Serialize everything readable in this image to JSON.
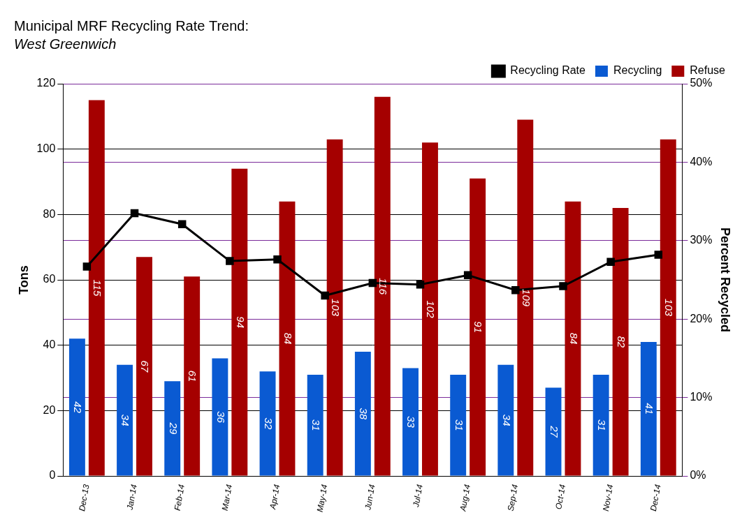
{
  "chart_data": {
    "type": "bar",
    "title": "Municipal MRF Recycling Rate Trend:",
    "subtitle": "West Greenwich",
    "y_label": "Tons",
    "y2_label": "Percent Recycled",
    "categories": [
      "Dec-13",
      "Jan-14",
      "Feb-14",
      "Mar-14",
      "Apr-14",
      "May-14",
      "Jun-14",
      "Jul-14",
      "Aug-14",
      "Sep-14",
      "Oct-14",
      "Nov-14",
      "Dec-14"
    ],
    "series": [
      {
        "name": "Recycling",
        "color": "#0a5ad2",
        "data_labels": true,
        "values": [
          42,
          34,
          29,
          36,
          32,
          31,
          38,
          33,
          31,
          34,
          27,
          31,
          41
        ]
      },
      {
        "name": "Refuse",
        "color": "#a50000",
        "data_labels": true,
        "values": [
          115,
          67,
          61,
          94,
          84,
          103,
          116,
          102,
          91,
          109,
          84,
          82,
          103
        ]
      },
      {
        "name": "Recycling Rate",
        "type": "line",
        "color": "#000000",
        "marker": "square",
        "axis": "y2",
        "values": [
          26.7,
          33.5,
          32.1,
          27.4,
          27.6,
          23.0,
          24.6,
          24.4,
          25.6,
          23.7,
          24.2,
          27.3,
          28.2
        ]
      }
    ],
    "ylim": [
      0,
      120
    ],
    "yticks": [
      0,
      20,
      40,
      60,
      80,
      100,
      120
    ],
    "y2lim": [
      0,
      50
    ],
    "y2ticks": [
      {
        "value": 0,
        "label": "0%"
      },
      {
        "value": 10,
        "label": "10%"
      },
      {
        "value": 20,
        "label": "20%"
      },
      {
        "value": 30,
        "label": "30%"
      },
      {
        "value": 40,
        "label": "40%"
      },
      {
        "value": 50,
        "label": "50%"
      }
    ],
    "grid": true,
    "legend": "top"
  }
}
